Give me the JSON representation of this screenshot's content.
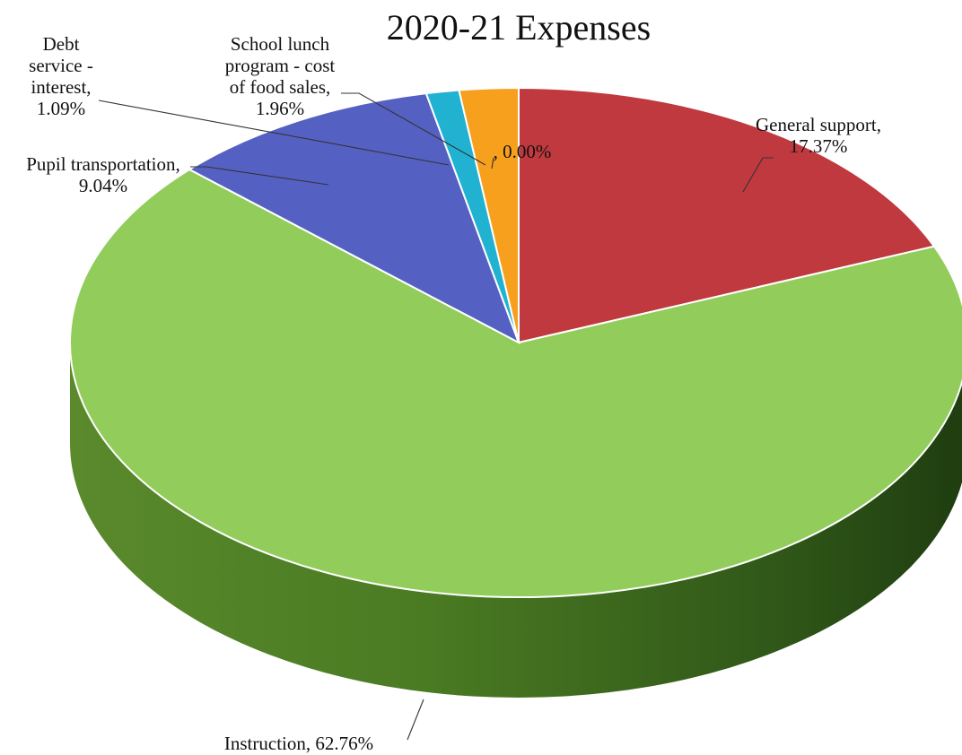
{
  "chart_data": {
    "type": "pie",
    "title": "2020-21 Expenses",
    "three_d": true,
    "legend": "none",
    "slices": [
      {
        "label_lines": [
          "General support,",
          "17.37%"
        ],
        "value": 17.37,
        "color": "#c0393f"
      },
      {
        "label_lines": [
          "Instruction, 62.76%"
        ],
        "value": 62.76,
        "color": "#92cc5b"
      },
      {
        "label_lines": [
          "Pupil transportation,",
          "9.04%"
        ],
        "value": 9.04,
        "color": "#5561c2"
      },
      {
        "label_lines": [
          "Debt",
          "service -",
          "interest,",
          "1.09%"
        ],
        "value": 1.09,
        "color": "#20b2d0"
      },
      {
        "label_lines": [
          "School lunch",
          "program - cost",
          "of food sales,",
          "1.96%"
        ],
        "value": 1.96,
        "color": "#f7a01d"
      },
      {
        "label_lines": [
          ", 0.00%"
        ],
        "value": 0.0,
        "color": "#888888"
      }
    ]
  }
}
